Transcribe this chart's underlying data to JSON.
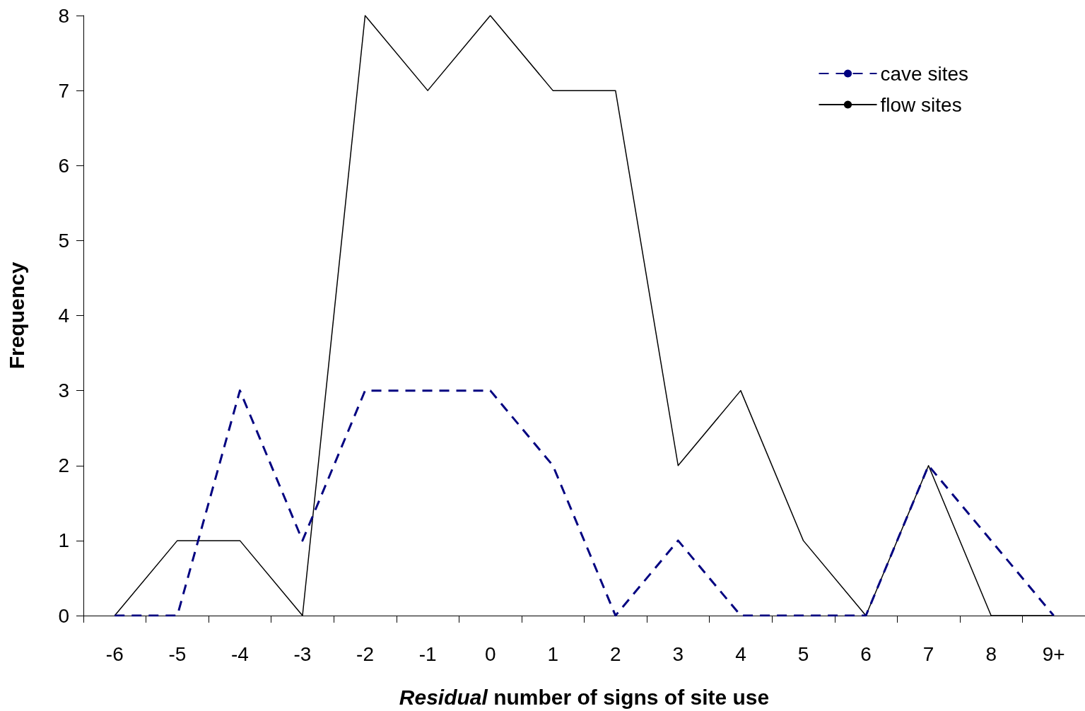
{
  "chart_data": {
    "type": "line",
    "xlabel": "Residual number of signs of site use",
    "ylabel": "Frequency",
    "categories": [
      "-6",
      "-5",
      "-4",
      "-3",
      "-2",
      "-1",
      "0",
      "1",
      "2",
      "3",
      "4",
      "5",
      "6",
      "7",
      "8",
      "9+"
    ],
    "series": [
      {
        "name": "cave sites",
        "color": "#000080",
        "line_style": "dashed",
        "values": [
          0,
          0,
          3,
          1,
          3,
          3,
          3,
          2,
          0,
          1,
          0,
          0,
          0,
          2,
          1,
          0
        ]
      },
      {
        "name": "flow sites",
        "color": "#000000",
        "line_style": "solid",
        "values": [
          0,
          1,
          1,
          0,
          8,
          7,
          8,
          7,
          7,
          2,
          3,
          1,
          0,
          2,
          0,
          0
        ]
      }
    ],
    "ylim": [
      0,
      8
    ],
    "yticks": [
      0,
      1,
      2,
      3,
      4,
      5,
      6,
      7,
      8
    ],
    "grid": false,
    "legend": "top right",
    "marker": "none"
  }
}
